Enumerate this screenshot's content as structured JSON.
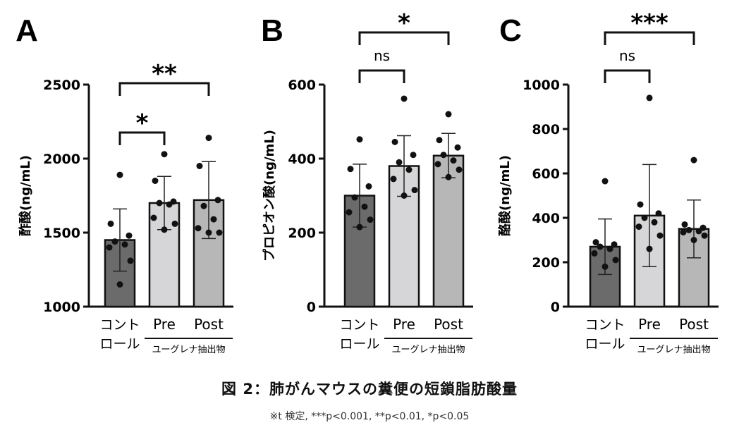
{
  "caption": {
    "title": "図 2：肺がんマウスの糞便の短鎖脂肪酸量",
    "note": "※t 検定, ***p<0.001, **p<0.01, *p<0.05"
  },
  "group_label": "ユーグレナ抽出物",
  "chart_data": [
    {
      "type": "bar",
      "panel": "A",
      "ylabel": "酢酸(ng/mL)",
      "categories": [
        "コント\nロール",
        "Pre",
        "Post"
      ],
      "ylim": [
        1000,
        2500
      ],
      "yticks": [
        1000,
        1500,
        2000,
        2500
      ],
      "means": [
        1450,
        1700,
        1720
      ],
      "sd": [
        210,
        180,
        260
      ],
      "colors": [
        "#6b6b6b",
        "#d6d6d9",
        "#b7b7b7"
      ],
      "points": [
        [
          1890,
          1560,
          1480,
          1440,
          1420,
          1400,
          1310,
          1150
        ],
        [
          2030,
          1850,
          1710,
          1700,
          1690,
          1600,
          1560,
          1520
        ],
        [
          2140,
          1950,
          1720,
          1680,
          1590,
          1530,
          1500,
          1500
        ]
      ],
      "comparisons": [
        {
          "from": 0,
          "to": 1,
          "label": "*"
        },
        {
          "from": 0,
          "to": 2,
          "label": "**"
        }
      ]
    },
    {
      "type": "bar",
      "panel": "B",
      "ylabel": "プロピオン酸(ng/mL)",
      "categories": [
        "コント\nロール",
        "Pre",
        "Post"
      ],
      "ylim": [
        0,
        600
      ],
      "yticks": [
        0,
        200,
        400,
        600
      ],
      "means": [
        300,
        380,
        408
      ],
      "sd": [
        85,
        82,
        60
      ],
      "colors": [
        "#6b6b6b",
        "#d6d6d9",
        "#b7b7b7"
      ],
      "points": [
        [
          452,
          372,
          325,
          295,
          270,
          255,
          235,
          215
        ],
        [
          562,
          445,
          410,
          390,
          370,
          345,
          315,
          300
        ],
        [
          520,
          450,
          430,
          410,
          395,
          385,
          370,
          350
        ]
      ],
      "comparisons": [
        {
          "from": 0,
          "to": 1,
          "label": "ns"
        },
        {
          "from": 0,
          "to": 2,
          "label": "*"
        }
      ]
    },
    {
      "type": "bar",
      "panel": "C",
      "ylabel": "酪酸(ng/mL)",
      "categories": [
        "コント\nロール",
        "Pre",
        "Post"
      ],
      "ylim": [
        0,
        1000
      ],
      "yticks": [
        0,
        200,
        400,
        600,
        800,
        1000
      ],
      "means": [
        270,
        410,
        350
      ],
      "sd": [
        125,
        230,
        130
      ],
      "colors": [
        "#6b6b6b",
        "#d6d6d9",
        "#b7b7b7"
      ],
      "points": [
        [
          565,
          290,
          280,
          270,
          260,
          240,
          210,
          180
        ],
        [
          940,
          460,
          420,
          400,
          380,
          360,
          320,
          260
        ],
        [
          660,
          370,
          355,
          345,
          340,
          335,
          320,
          300
        ]
      ],
      "comparisons": [
        {
          "from": 0,
          "to": 1,
          "label": "ns"
        },
        {
          "from": 0,
          "to": 2,
          "label": "***"
        }
      ]
    }
  ]
}
